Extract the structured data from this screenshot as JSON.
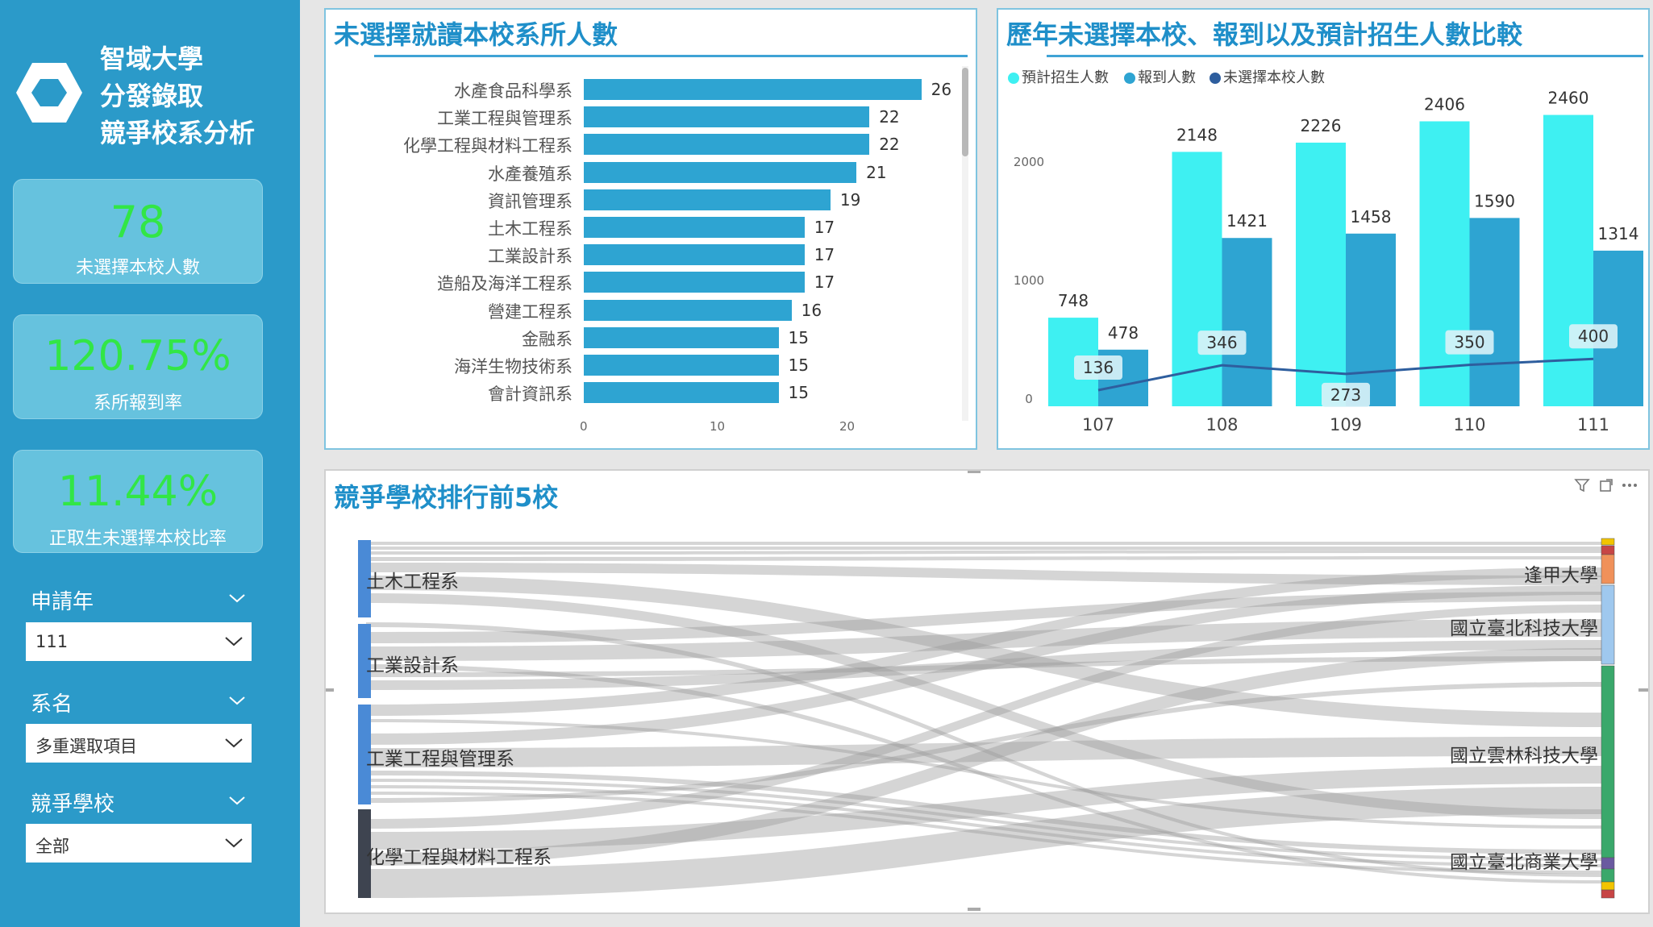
{
  "sidebar": {
    "title_lines": [
      "智域大學",
      "分發錄取",
      "競爭校系分析"
    ],
    "kpis": [
      {
        "value": "78",
        "label": "未選擇本校人數"
      },
      {
        "value": "120.75%",
        "label": "系所報到率"
      },
      {
        "value": "11.44%",
        "label": "正取生未選擇本校比率"
      }
    ],
    "slicers": [
      {
        "label": "申請年",
        "value": "111"
      },
      {
        "label": "系名",
        "value": "多重選取項目"
      },
      {
        "label": "競爭學校",
        "value": "全部"
      }
    ],
    "colors": {
      "background": "#2b9ac9",
      "kpi_card": "#66c2de",
      "kpi_value": "#32e646"
    }
  },
  "bar_panel": {
    "title": "未選擇就讀本校系所人數",
    "chart_data": {
      "type": "bar",
      "orientation": "horizontal",
      "categories": [
        "水產食品科學系",
        "工業工程與管理系",
        "化學工程與材料工程系",
        "水產養殖系",
        "資訊管理系",
        "土木工程系",
        "工業設計系",
        "造船及海洋工程系",
        "營建工程系",
        "金融系",
        "海洋生物技術系",
        "會計資訊系"
      ],
      "values": [
        26,
        22,
        22,
        21,
        19,
        17,
        17,
        17,
        16,
        15,
        15,
        15
      ],
      "xlim": [
        0,
        26
      ],
      "xticks": [
        "0",
        "10",
        "20"
      ],
      "color": "#2ea4d2"
    }
  },
  "combo_panel": {
    "title": "歷年未選擇本校、報到以及預計招生人數比較",
    "legend": [
      "預計招生人數",
      "報到人數",
      "未選擇本校人數"
    ],
    "chart_data": {
      "type": "bar",
      "categories": [
        "107",
        "108",
        "109",
        "110",
        "111"
      ],
      "series": [
        {
          "name": "預計招生人數",
          "values": [
            748,
            2148,
            2226,
            2406,
            2460
          ],
          "color": "#3ef0f2",
          "kind": "bar"
        },
        {
          "name": "報到人數",
          "values": [
            478,
            1421,
            1458,
            1590,
            1314
          ],
          "color": "#2ea4d2",
          "kind": "bar"
        },
        {
          "name": "未選擇本校人數",
          "values": [
            136,
            346,
            273,
            350,
            400
          ],
          "color": "#2e5e9e",
          "kind": "line"
        }
      ],
      "ylim": [
        0,
        2600
      ],
      "yticks": [
        "0",
        "1000",
        "2000"
      ]
    }
  },
  "sankey_panel": {
    "title": "競爭學校排行前5校",
    "sources": [
      "土木工程系",
      "工業設計系",
      "工業工程與管理系",
      "化學工程與材料工程系"
    ],
    "targets": [
      "逢甲大學",
      "國立臺北科技大學",
      "國立雲林科技大學",
      "國立臺北商業大學"
    ]
  }
}
